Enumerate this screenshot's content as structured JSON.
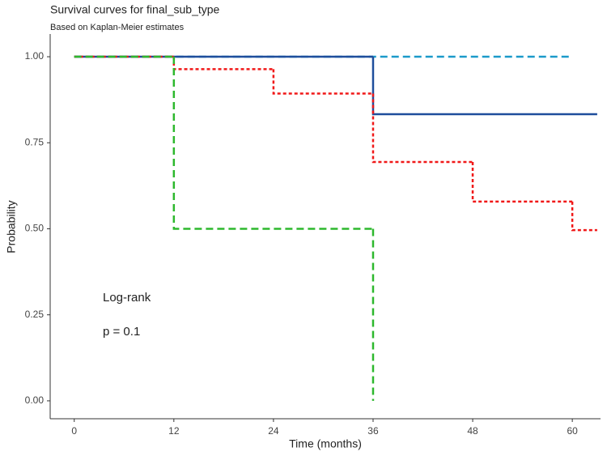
{
  "chart_data": {
    "type": "step",
    "title": "Survival curves for final_sub_type",
    "subtitle": "Based on Kaplan-Meier estimates",
    "xlabel": "Time (months)",
    "ylabel": "Probability",
    "annotations": [
      "Log-rank",
      "p = 0.1"
    ],
    "xlim": [
      -2.9,
      63.4
    ],
    "xticks": [
      0,
      12,
      24,
      36,
      48,
      60
    ],
    "ylim": [
      -0.052,
      1.066
    ],
    "yticks": [
      {
        "value": 0,
        "label": "0.00"
      },
      {
        "value": 0.25,
        "label": "0.25"
      },
      {
        "value": 0.5,
        "label": "0.50"
      },
      {
        "value": 0.75,
        "label": "0.75"
      },
      {
        "value": 1,
        "label": "1.00"
      }
    ],
    "series": [
      {
        "color": "#f08a6c",
        "linestyle": "dashed",
        "x": [
          0,
          12
        ],
        "values": [
          1,
          1
        ]
      },
      {
        "color": "#1b9ac9",
        "linestyle": "dashed",
        "x": [
          0,
          60
        ],
        "values": [
          1,
          1
        ]
      },
      {
        "color": "#1f4e9c",
        "linestyle": "solid",
        "x": [
          0,
          36,
          63
        ],
        "values": [
          1,
          0.833,
          0.833
        ]
      },
      {
        "color": "#f01818",
        "linestyle": "dotted",
        "x": [
          0,
          12,
          24,
          36,
          48,
          60,
          63
        ],
        "values": [
          1,
          0.964,
          0.893,
          0.694,
          0.579,
          0.496,
          0.496
        ]
      },
      {
        "color": "#2db82d",
        "linestyle": "dashed",
        "x": [
          0,
          12,
          36
        ],
        "values": [
          1,
          0.5,
          0
        ]
      }
    ]
  }
}
